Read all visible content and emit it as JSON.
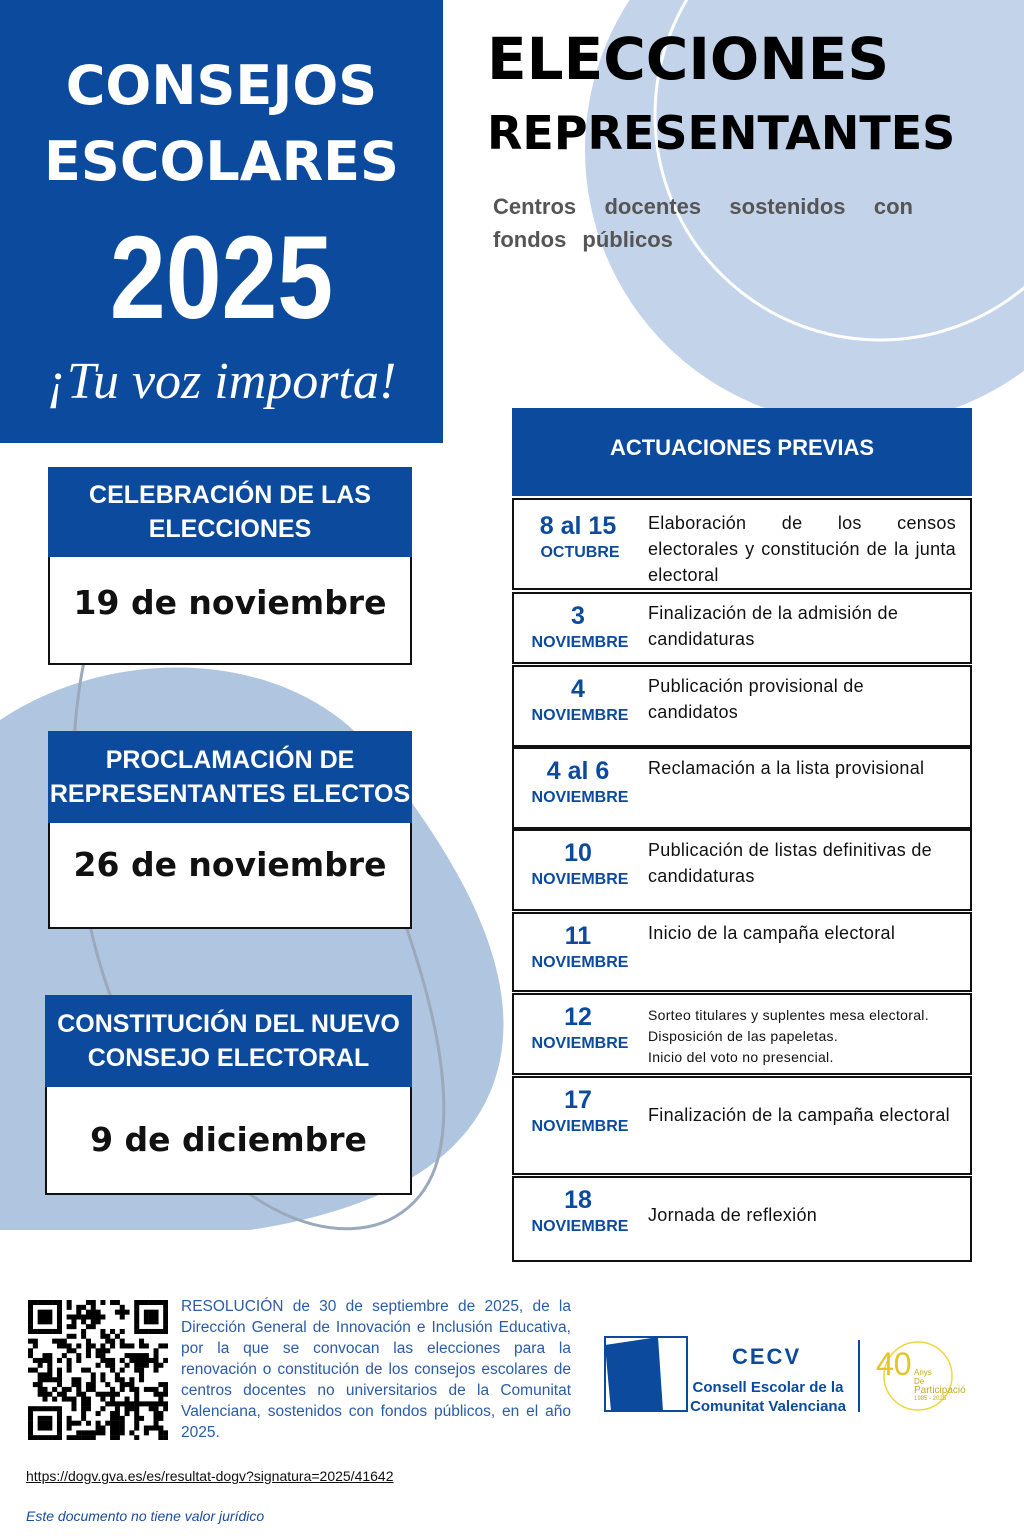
{
  "poster": {
    "title_lines": [
      "CONSEJOS",
      "ESCOLARES"
    ],
    "year": "2025",
    "slogan": "¡Tu voz importa!",
    "headline": [
      "ELECCIONES",
      "REPRESENTANTES"
    ],
    "subtitle": "Centros docentes sostenidos con fondos públicos"
  },
  "key_dates": [
    {
      "heading": [
        "CELEBRACIÓN DE LAS",
        "ELECCIONES"
      ],
      "date": "19 de noviembre"
    },
    {
      "heading": [
        "PROCLAMACIÓN DE",
        "REPRESENTANTES ELECTOS"
      ],
      "date": "26 de noviembre"
    },
    {
      "heading": [
        "CONSTITUCIÓN DEL NUEVO",
        "CONSEJO ELECTORAL"
      ],
      "date": "9 de diciembre"
    }
  ],
  "schedule": {
    "title": "ACTUACIONES PREVIAS",
    "rows": [
      {
        "day": "8 al 15",
        "month": "OCTUBRE",
        "text": [
          "Elaboración de los censos electorales y constitución de la junta electoral"
        ]
      },
      {
        "day": "3",
        "month": "NOVIEMBRE",
        "text": [
          "Finalización de la admisión de candidaturas"
        ]
      },
      {
        "day": "4",
        "month": "NOVIEMBRE",
        "text": [
          "Publicación provisional de candidatos"
        ]
      },
      {
        "day": "4 al 6",
        "month": "NOVIEMBRE",
        "text": [
          "Reclamación a la lista provisional"
        ]
      },
      {
        "day": "10",
        "month": "NOVIEMBRE",
        "text": [
          "Publicación de listas definitivas de candidaturas"
        ]
      },
      {
        "day": "11",
        "month": "NOVIEMBRE",
        "text": [
          "Inicio de la campaña electoral"
        ]
      },
      {
        "day": "12",
        "month": "NOVIEMBRE",
        "text": [
          "Sorteo titulares y suplentes mesa electoral.",
          "Disposición de las papeletas.",
          "Inicio del voto no presencial."
        ]
      },
      {
        "day": "17",
        "month": "NOVIEMBRE",
        "text": [
          "Finalización de la campaña electoral"
        ]
      },
      {
        "day": "18",
        "month": "NOVIEMBRE",
        "text": [
          "Jornada de reflexión"
        ]
      }
    ]
  },
  "footer": {
    "resolution": "RESOLUCIÓN de 30 de septiembre de 2025, de la Dirección General de Innovación e Inclusión Educativa, por la que se convocan las elecciones para la renovación o constitución de los consejos escolares de centros docentes no universitarios de la Comunitat Valenciana, sostenidos con fondos públicos, en el año 2025.",
    "url": "https://dogv.gva.es/es/resultat-dogv?signatura=2025/41642",
    "disclaimer": "Este documento no tiene valor jurídico"
  },
  "logo": {
    "acronym": "CECV",
    "name_lines": [
      "Consell Escolar de la",
      "Comunitat Valenciana"
    ],
    "anniversary": "40",
    "anniversary_lines": [
      "Anys",
      "De",
      "Participació"
    ],
    "years": "1985 - 2025"
  }
}
